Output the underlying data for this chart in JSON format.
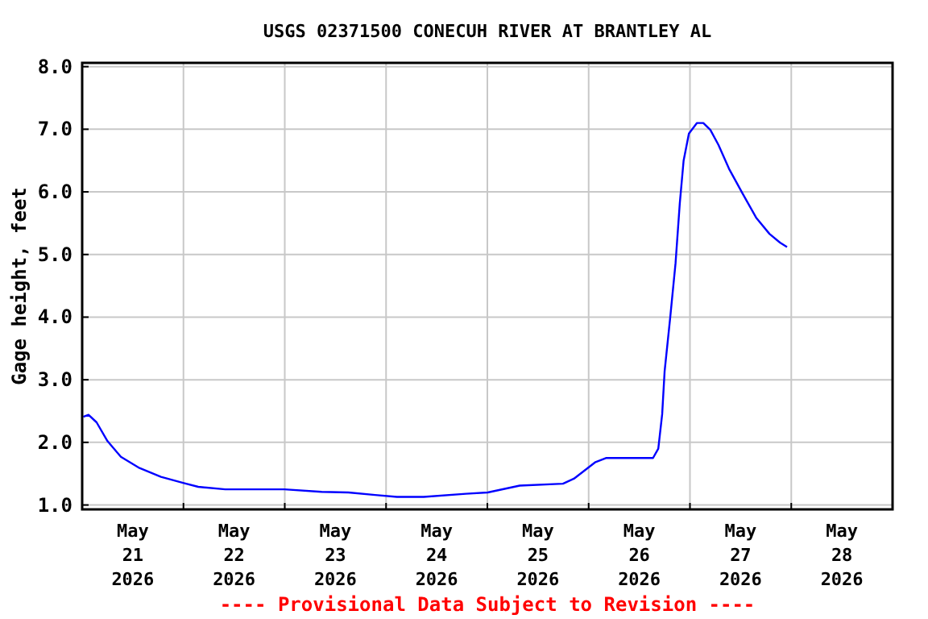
{
  "chart_data": {
    "type": "line",
    "title": "USGS 02371500 CONECUH RIVER AT BRANTLEY AL",
    "ylabel": "Gage height, feet",
    "annotations": [
      "---- Provisional Data Subject to Revision ----"
    ],
    "xlim": [
      "2026-05-21T00:00",
      "2026-05-29T00:00"
    ],
    "xticks": [
      {
        "value": "2026-05-21T00:00",
        "label": null
      },
      {
        "value": "2026-05-21T12:00",
        "label": "May 21 2026"
      },
      {
        "value": "2026-05-22T00:00",
        "label": null
      },
      {
        "value": "2026-05-22T12:00",
        "label": "May 22 2026"
      },
      {
        "value": "2026-05-23T00:00",
        "label": null
      },
      {
        "value": "2026-05-23T12:00",
        "label": "May 23 2026"
      },
      {
        "value": "2026-05-24T00:00",
        "label": null
      },
      {
        "value": "2026-05-24T12:00",
        "label": "May 24 2026"
      },
      {
        "value": "2026-05-25T00:00",
        "label": null
      },
      {
        "value": "2026-05-25T12:00",
        "label": "May 25 2026"
      },
      {
        "value": "2026-05-26T00:00",
        "label": null
      },
      {
        "value": "2026-05-26T12:00",
        "label": "May 26 2026"
      },
      {
        "value": "2026-05-27T00:00",
        "label": null
      },
      {
        "value": "2026-05-27T12:00",
        "label": "May 27 2026"
      },
      {
        "value": "2026-05-28T00:00",
        "label": null
      },
      {
        "value": "2026-05-28T12:00",
        "label": "May 28 2026"
      },
      {
        "value": "2026-05-29T00:00",
        "label": null
      }
    ],
    "ylim": [
      0.93,
      8.06
    ],
    "yticks": [
      {
        "value": 1,
        "label": "1.0"
      },
      {
        "value": 2,
        "label": "2.0"
      },
      {
        "value": 3,
        "label": "3.0"
      },
      {
        "value": 4,
        "label": "4.0"
      },
      {
        "value": 5,
        "label": "5.0"
      },
      {
        "value": 6,
        "label": "6.0"
      },
      {
        "value": 7,
        "label": "7.0"
      },
      {
        "value": 8,
        "label": "8.0"
      }
    ],
    "grid": true,
    "line_style": "solid",
    "x": [
      "2026-05-21T00:16",
      "2026-05-21T01:30",
      "2026-05-21T03:25",
      "2026-05-21T06:00",
      "2026-05-21T09:10",
      "2026-05-21T13:35",
      "2026-05-21T18:40",
      "2026-05-22T00:05",
      "2026-05-22T03:30",
      "2026-05-22T09:55",
      "2026-05-22T16:15",
      "2026-05-22T23:55",
      "2026-05-23T08:45",
      "2026-05-23T15:05",
      "2026-05-23T21:25",
      "2026-05-24T02:35",
      "2026-05-24T08:55",
      "2026-05-24T18:55",
      "2026-05-25T00:05",
      "2026-05-25T07:40",
      "2026-05-25T17:55",
      "2026-05-25T20:30",
      "2026-05-26T01:30",
      "2026-05-26T04:05",
      "2026-05-26T10:25",
      "2026-05-26T15:15",
      "2026-05-26T16:30",
      "2026-05-26T17:25",
      "2026-05-26T18:00",
      "2026-05-26T19:20",
      "2026-05-26T20:35",
      "2026-05-26T21:35",
      "2026-05-26T22:30",
      "2026-05-26T23:45",
      "2026-05-27T01:40",
      "2026-05-27T03:10",
      "2026-05-27T04:50",
      "2026-05-27T06:45",
      "2026-05-27T09:15",
      "2026-05-27T12:25",
      "2026-05-27T15:40",
      "2026-05-27T18:50",
      "2026-05-27T21:20",
      "2026-05-27T23:00"
    ],
    "series": [
      {
        "color": "#0000ff",
        "values": [
          2.41,
          2.44,
          2.32,
          2.02,
          1.77,
          1.59,
          1.45,
          1.35,
          1.29,
          1.25,
          1.25,
          1.25,
          1.21,
          1.2,
          1.16,
          1.13,
          1.13,
          1.18,
          1.2,
          1.31,
          1.34,
          1.42,
          1.68,
          1.75,
          1.75,
          1.75,
          1.9,
          2.45,
          3.14,
          4.0,
          4.86,
          5.81,
          6.5,
          6.93,
          7.1,
          7.1,
          6.99,
          6.75,
          6.37,
          5.98,
          5.59,
          5.33,
          5.19,
          5.12
        ]
      }
    ]
  }
}
